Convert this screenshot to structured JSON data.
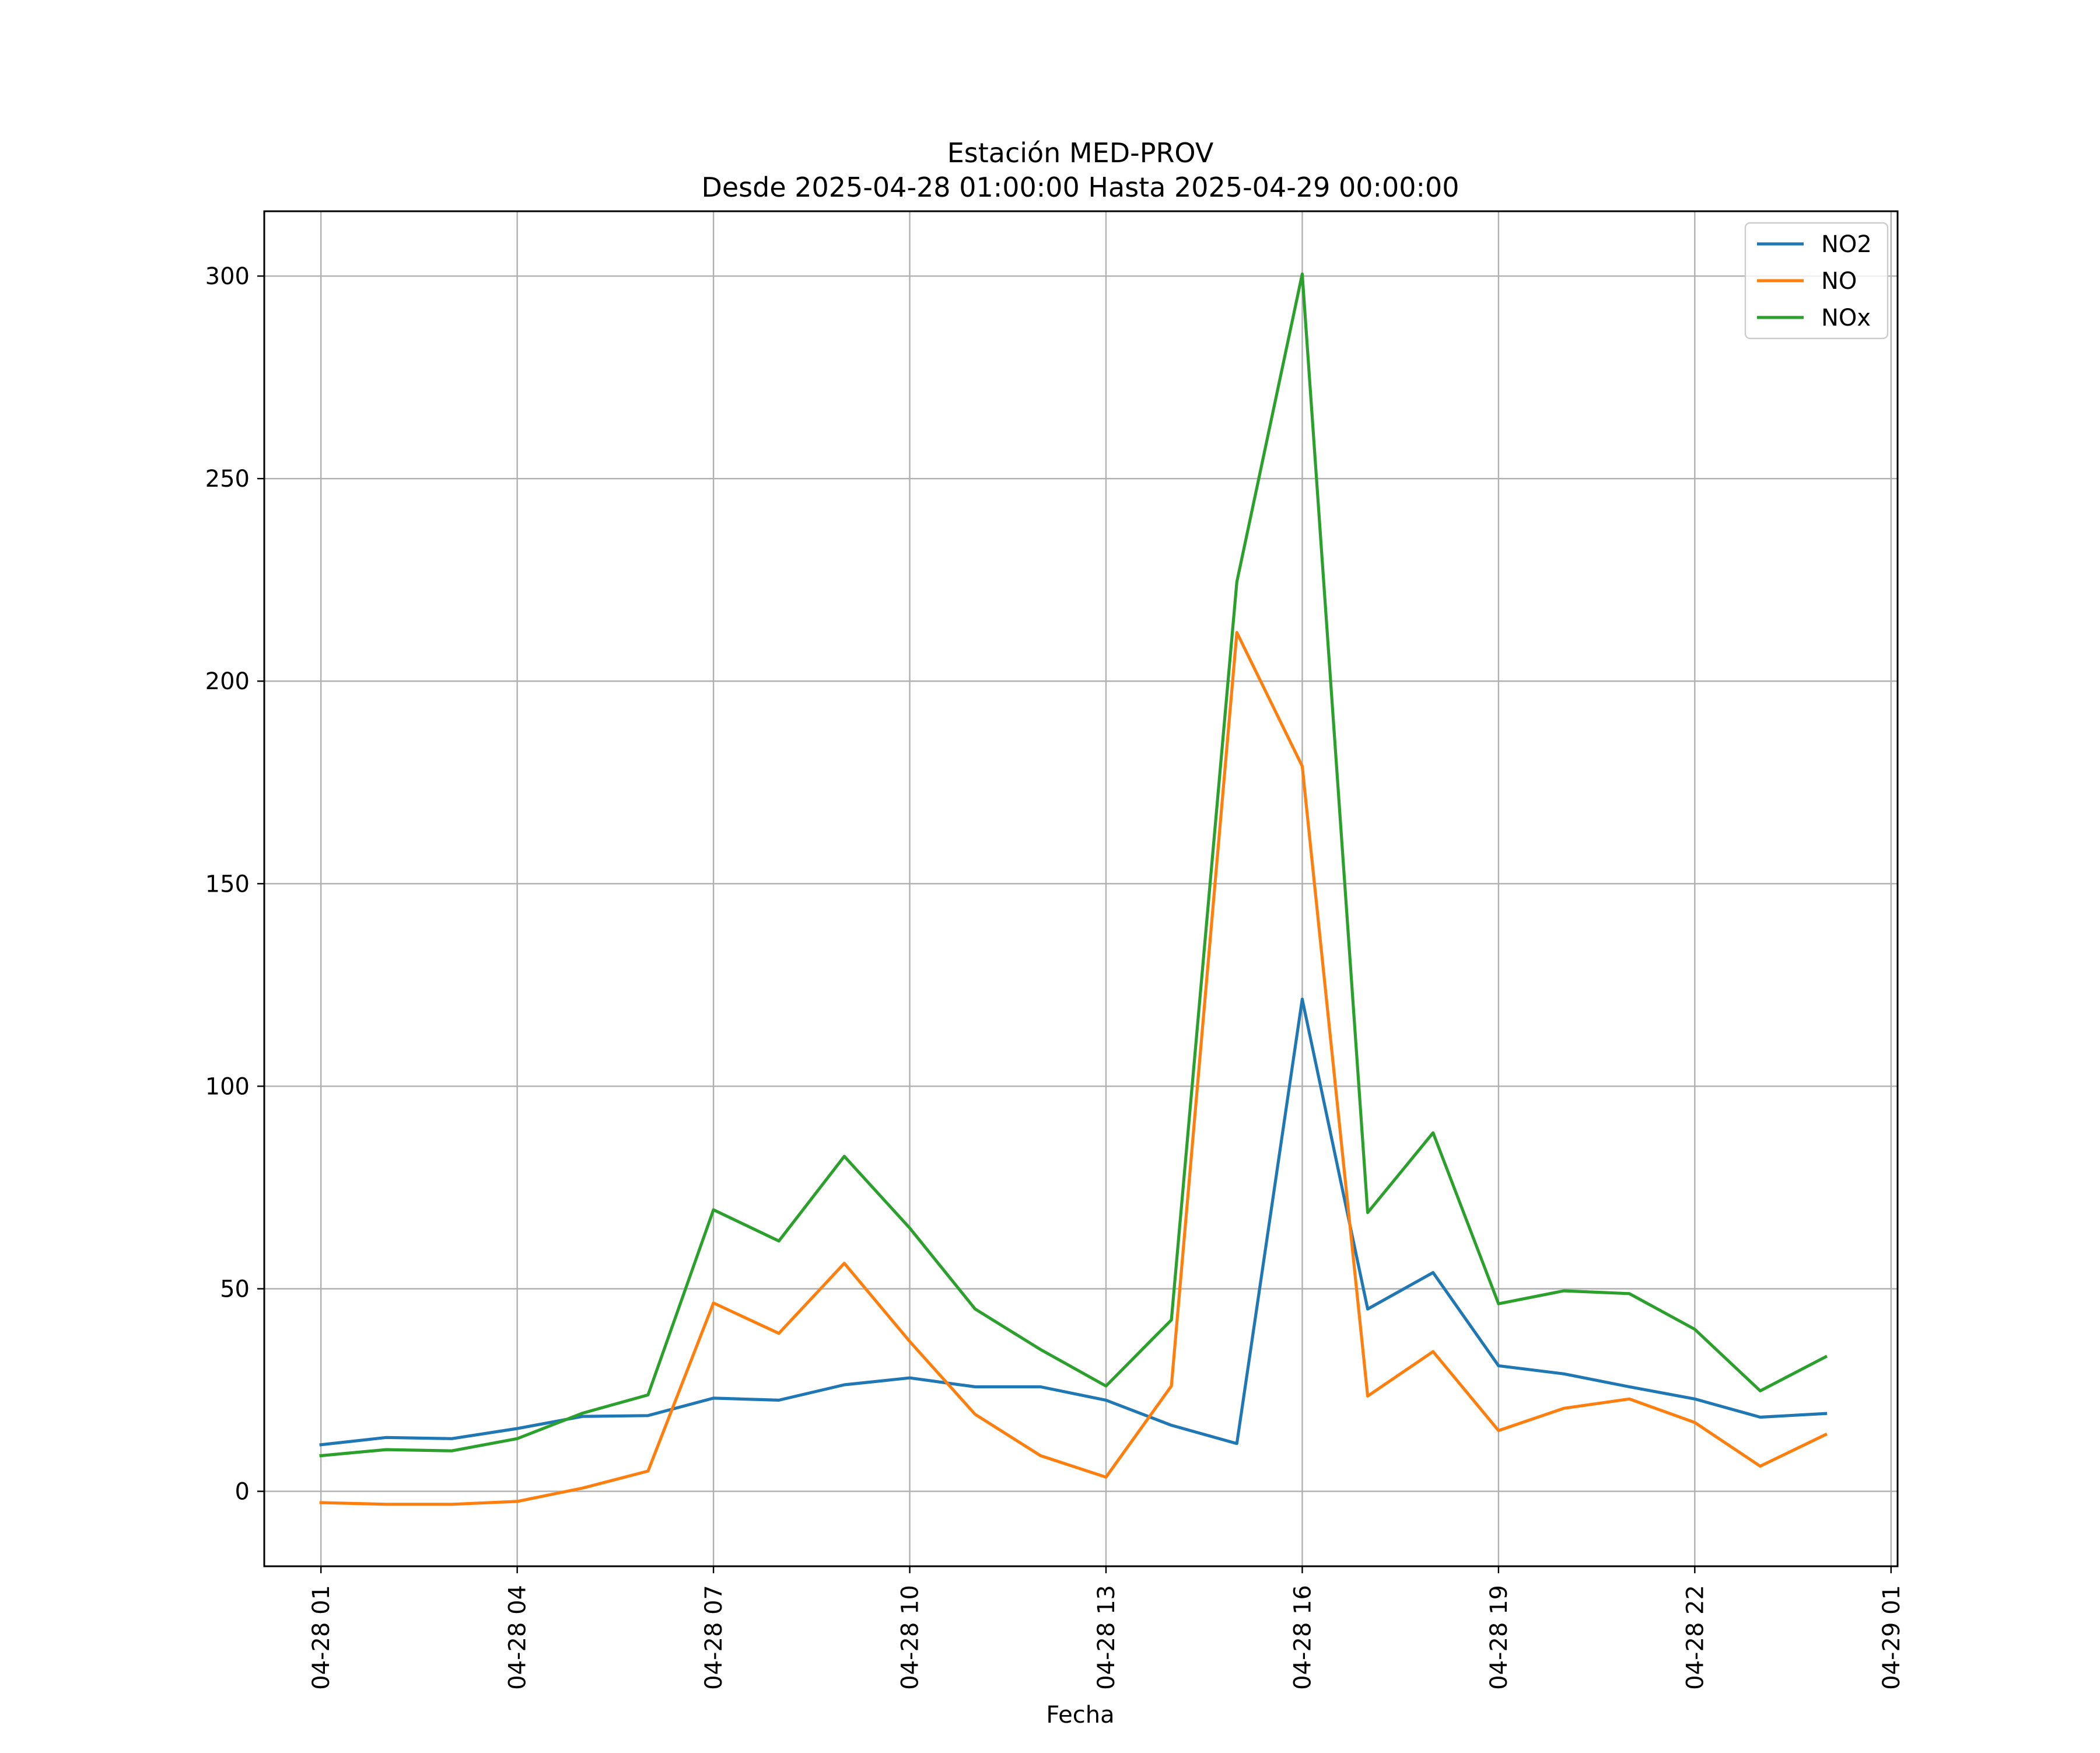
{
  "chart_data": {
    "type": "line",
    "title": "Estación MED-PROV",
    "subtitle": "Desde 2025-04-28 01:00:00 Hasta 2025-04-29 00:00:00",
    "xlabel": "Fecha",
    "ylabel": "",
    "x": [
      "2025-04-28 01:00",
      "2025-04-28 02:00",
      "2025-04-28 03:00",
      "2025-04-28 04:00",
      "2025-04-28 05:00",
      "2025-04-28 06:00",
      "2025-04-28 07:00",
      "2025-04-28 08:00",
      "2025-04-28 09:00",
      "2025-04-28 10:00",
      "2025-04-28 11:00",
      "2025-04-28 12:00",
      "2025-04-28 13:00",
      "2025-04-28 14:00",
      "2025-04-28 15:00",
      "2025-04-28 16:00",
      "2025-04-28 17:00",
      "2025-04-28 18:00",
      "2025-04-28 19:00",
      "2025-04-28 20:00",
      "2025-04-28 21:00",
      "2025-04-28 22:00",
      "2025-04-28 23:00",
      "2025-04-29 00:00"
    ],
    "series": [
      {
        "name": "NO2",
        "color": "#1f77b4",
        "values": [
          11.5,
          13.3,
          13.0,
          15.5,
          18.5,
          18.7,
          23.0,
          22.5,
          26.3,
          28.0,
          25.8,
          25.8,
          22.5,
          16.3,
          11.8,
          121.5,
          45.0,
          54.0,
          31.0,
          29.0,
          25.8,
          22.8,
          18.3,
          19.2
        ]
      },
      {
        "name": "NO",
        "color": "#ff7f0e",
        "values": [
          -2.8,
          -3.2,
          -3.2,
          -2.5,
          0.8,
          5.0,
          46.5,
          39.0,
          56.3,
          37.0,
          19.0,
          8.8,
          3.5,
          26.0,
          212.0,
          179.0,
          23.5,
          34.5,
          15.0,
          20.5,
          22.8,
          17.0,
          6.2,
          14.0
        ]
      },
      {
        "name": "NOx",
        "color": "#2ca02c",
        "values": [
          8.8,
          10.3,
          10.0,
          13.0,
          19.3,
          23.8,
          69.5,
          61.8,
          82.7,
          65.0,
          45.0,
          35.0,
          26.0,
          42.3,
          224.5,
          300.5,
          68.8,
          88.5,
          46.3,
          49.5,
          48.8,
          40.0,
          24.8,
          33.2
        ]
      }
    ],
    "x_ticks": [
      "04-28 01",
      "04-28 04",
      "04-28 07",
      "04-28 10",
      "04-28 13",
      "04-28 16",
      "04-28 19",
      "04-28 22",
      "04-29 01"
    ],
    "y_ticks": [
      0,
      50,
      100,
      150,
      200,
      250,
      300
    ],
    "ylim": [
      -18.5,
      316
    ],
    "xlim": [
      "2025-04-28 00:08",
      "2025-04-29 01:06"
    ],
    "grid": true,
    "legend_position": "top-right"
  }
}
